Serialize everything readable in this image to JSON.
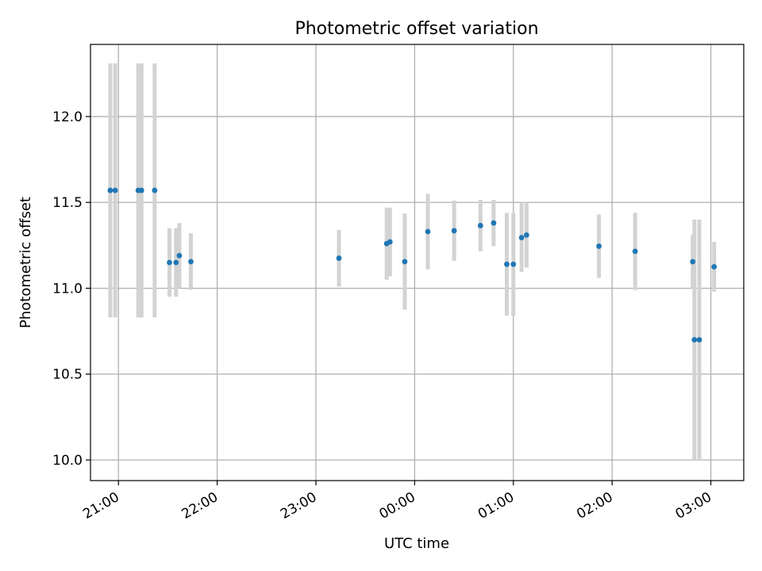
{
  "chart_data": {
    "type": "scatter",
    "title": "Photometric offset variation",
    "xlabel": "UTC time",
    "ylabel": "Photometric offset",
    "x_axis_kind": "time",
    "xlim": [
      "20:43",
      "03:20"
    ],
    "ylim": [
      9.88,
      12.42
    ],
    "grid": true,
    "x_ticks": [
      {
        "t": "21:00",
        "label": "21:00"
      },
      {
        "t": "22:00",
        "label": "22:00"
      },
      {
        "t": "23:00",
        "label": "23:00"
      },
      {
        "t": "00:00",
        "label": "00:00"
      },
      {
        "t": "01:00",
        "label": "01:00"
      },
      {
        "t": "02:00",
        "label": "02:00"
      },
      {
        "t": "03:00",
        "label": "03:00"
      }
    ],
    "y_ticks": [
      {
        "v": 10.0,
        "label": "10.0"
      },
      {
        "v": 10.5,
        "label": "10.5"
      },
      {
        "v": 11.0,
        "label": "11.0"
      },
      {
        "v": 11.5,
        "label": "11.5"
      },
      {
        "v": 12.0,
        "label": "12.0"
      }
    ],
    "series": [
      {
        "marker_color": "#1f77b4",
        "errorbar_color": "#d3d3d3",
        "points": [
          {
            "t": "20:55",
            "y": 11.57,
            "err": 0.74
          },
          {
            "t": "20:58",
            "y": 11.57,
            "err": 0.74
          },
          {
            "t": "21:12",
            "y": 11.57,
            "err": 0.74
          },
          {
            "t": "21:14",
            "y": 11.57,
            "err": 0.74
          },
          {
            "t": "21:22",
            "y": 11.57,
            "err": 0.74
          },
          {
            "t": "21:31",
            "y": 11.15,
            "err": 0.2
          },
          {
            "t": "21:35",
            "y": 11.15,
            "err": 0.2
          },
          {
            "t": "21:37",
            "y": 11.19,
            "err": 0.19
          },
          {
            "t": "21:44",
            "y": 11.155,
            "err": 0.165
          },
          {
            "t": "23:14",
            "y": 11.175,
            "err": 0.165
          },
          {
            "t": "23:43",
            "y": 11.26,
            "err": 0.21
          },
          {
            "t": "23:45",
            "y": 11.27,
            "err": 0.2
          },
          {
            "t": "23:54",
            "y": 11.155,
            "err": 0.28
          },
          {
            "t": "00:08",
            "y": 11.33,
            "err": 0.22
          },
          {
            "t": "00:24",
            "y": 11.335,
            "err": 0.175
          },
          {
            "t": "00:40",
            "y": 11.365,
            "err": 0.15
          },
          {
            "t": "00:48",
            "y": 11.38,
            "err": 0.135
          },
          {
            "t": "00:56",
            "y": 11.14,
            "err": 0.3
          },
          {
            "t": "01:00",
            "y": 11.14,
            "err": 0.3
          },
          {
            "t": "01:05",
            "y": 11.295,
            "err": 0.2
          },
          {
            "t": "01:08",
            "y": 11.31,
            "err": 0.19
          },
          {
            "t": "01:52",
            "y": 11.245,
            "err": 0.185
          },
          {
            "t": "02:14",
            "y": 11.215,
            "err": 0.225
          },
          {
            "t": "02:49",
            "y": 11.155,
            "err": 0.155
          },
          {
            "t": "02:50",
            "y": 10.7,
            "err": 0.7
          },
          {
            "t": "02:53",
            "y": 10.7,
            "err": 0.7
          },
          {
            "t": "03:02",
            "y": 11.125,
            "err": 0.145
          }
        ]
      }
    ]
  }
}
